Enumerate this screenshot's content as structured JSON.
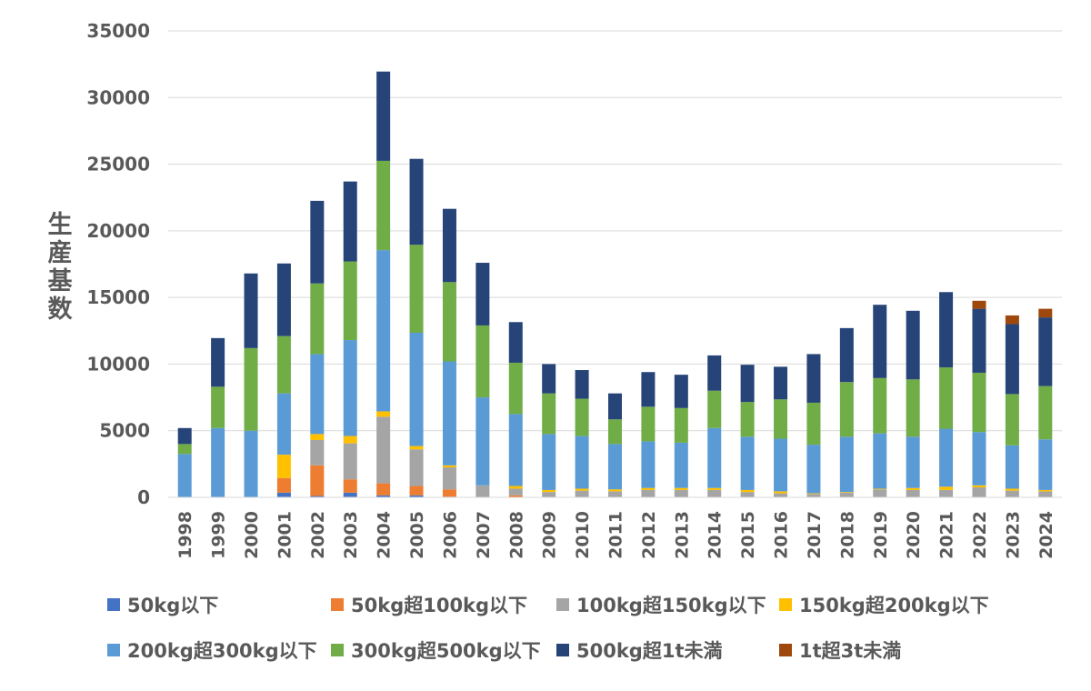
{
  "chart_data": {
    "type": "bar",
    "stacked": true,
    "ylabel": "生産基数",
    "xlabel": "",
    "ylim": [
      0,
      35000
    ],
    "yticks": [
      0,
      5000,
      10000,
      15000,
      20000,
      25000,
      30000,
      35000
    ],
    "grid": true,
    "legend_position": "bottom",
    "categories": [
      "1998",
      "1999",
      "2000",
      "2001",
      "2002",
      "2003",
      "2004",
      "2005",
      "2006",
      "2007",
      "2008",
      "2009",
      "2010",
      "2011",
      "2012",
      "2013",
      "2014",
      "2015",
      "2016",
      "2017",
      "2018",
      "2019",
      "2020",
      "2021",
      "2022",
      "2023",
      "2024"
    ],
    "series": [
      {
        "name": "50kg以下",
        "color": "#4472c4",
        "values": [
          0,
          0,
          0,
          350,
          100,
          350,
          150,
          150,
          50,
          0,
          0,
          0,
          0,
          0,
          0,
          0,
          0,
          0,
          0,
          0,
          0,
          0,
          0,
          0,
          0,
          0,
          0
        ]
      },
      {
        "name": "50kg超100kg以下",
        "color": "#ed7d31",
        "values": [
          0,
          0,
          0,
          1100,
          2300,
          1000,
          900,
          700,
          550,
          0,
          150,
          0,
          0,
          0,
          0,
          0,
          0,
          0,
          0,
          0,
          0,
          0,
          0,
          0,
          0,
          0,
          0
        ]
      },
      {
        "name": "100kg超150kg以下",
        "color": "#a5a5a5",
        "values": [
          0,
          0,
          0,
          0,
          1900,
          2700,
          5000,
          2750,
          1650,
          900,
          500,
          400,
          500,
          450,
          550,
          550,
          550,
          400,
          300,
          250,
          350,
          600,
          550,
          550,
          750,
          500,
          450
        ]
      },
      {
        "name": "150kg超200kg以下",
        "color": "#ffc000",
        "values": [
          0,
          0,
          0,
          1750,
          450,
          550,
          400,
          250,
          150,
          0,
          200,
          150,
          150,
          150,
          150,
          150,
          150,
          150,
          150,
          50,
          50,
          50,
          150,
          250,
          150,
          150,
          100
        ]
      },
      {
        "name": "200kg超300kg以下",
        "color": "#5b9bd5",
        "values": [
          3250,
          5200,
          5000,
          4600,
          6000,
          7200,
          12100,
          8500,
          7800,
          6600,
          5400,
          4200,
          3950,
          3400,
          3500,
          3400,
          4500,
          4000,
          3950,
          3650,
          4150,
          4150,
          3850,
          4350,
          4000,
          3250,
          3800
        ]
      },
      {
        "name": "300kg超500kg以下",
        "color": "#70ad47",
        "values": [
          750,
          3100,
          6200,
          4300,
          5300,
          5900,
          6700,
          6600,
          5950,
          5400,
          3850,
          3050,
          2800,
          1850,
          2600,
          2600,
          2800,
          2600,
          2950,
          3150,
          4100,
          4150,
          4300,
          4600,
          4450,
          3850,
          4000
        ]
      },
      {
        "name": "500kg超1t未満",
        "color": "#264478",
        "values": [
          1200,
          3650,
          5600,
          5450,
          6200,
          6000,
          6700,
          6450,
          5500,
          4700,
          3050,
          2200,
          2150,
          1950,
          2600,
          2500,
          2650,
          2800,
          2450,
          3650,
          4050,
          5500,
          5150,
          5650,
          4800,
          5250,
          5150
        ]
      },
      {
        "name": "1t超3t未満",
        "color": "#9e480e",
        "values": [
          0,
          0,
          0,
          0,
          0,
          0,
          0,
          0,
          0,
          0,
          0,
          0,
          0,
          0,
          0,
          0,
          0,
          0,
          0,
          0,
          0,
          0,
          0,
          0,
          600,
          650,
          650
        ]
      }
    ]
  }
}
